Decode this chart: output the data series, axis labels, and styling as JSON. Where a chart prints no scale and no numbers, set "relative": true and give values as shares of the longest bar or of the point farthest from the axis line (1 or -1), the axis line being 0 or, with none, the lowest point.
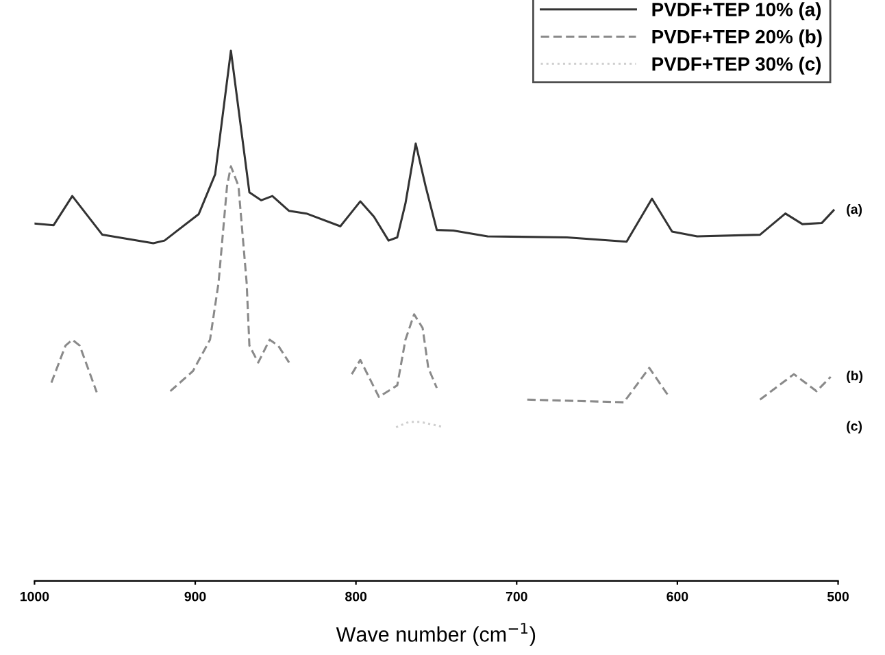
{
  "chart_data": {
    "type": "line",
    "relative": true,
    "xlabel": "Wave number (cm$^{−1}$)",
    "xlim": [
      1000,
      500
    ],
    "xticks": [
      1000,
      900,
      800,
      700,
      600,
      500
    ],
    "grid": false,
    "legend": "top right",
    "annotations": [
      "(a)",
      "(b)",
      "(c)"
    ],
    "series": [
      {
        "name": "PVDF+TEP 10% (a)",
        "color": "#333333",
        "line_style": "solid",
        "x": [
          1000,
          988.1,
          976.5,
          957.8,
          926.1,
          919.1,
          897.8,
          887.6,
          877.8,
          866.3,
          859.0,
          852.0,
          841.6,
          830.8,
          809.7,
          797.3,
          788.8,
          779.7,
          774.3,
          769.2,
          762.8,
          756.7,
          749.7,
          739.4,
          718.1,
          668.7,
          631.6,
          615.8,
          603.3,
          587.7,
          548.6,
          532.8,
          522.2,
          510.2,
          502.8
        ],
        "values": [
          0.674,
          0.671,
          0.726,
          0.653,
          0.637,
          0.642,
          0.692,
          0.767,
          1.0,
          0.733,
          0.718,
          0.726,
          0.698,
          0.693,
          0.669,
          0.716,
          0.687,
          0.642,
          0.648,
          0.712,
          0.825,
          0.745,
          0.662,
          0.661,
          0.65,
          0.648,
          0.64,
          0.721,
          0.659,
          0.65,
          0.653,
          0.693,
          0.673,
          0.675,
          0.699
        ]
      },
      {
        "name": "PVDF+TEP 20% (b)",
        "color": "#8a8a8a",
        "line_style": "dashed",
        "x": [
          989.5,
          980.7,
          976.5,
          971.9,
          961.3,
          940,
          915.5,
          901.4,
          890.8,
          885.5,
          880.2,
          877.8,
          873.1,
          868.0,
          866.3,
          860.8,
          853.7,
          848.4,
          841.6,
          820,
          802.6,
          797.3,
          785.7,
          774.3,
          769.2,
          763.8,
          758.5,
          755.0,
          749.7,
          720,
          693.4,
          633.3,
          617.5,
          605.1,
          580,
          548.6,
          527.5,
          513.4,
          504.6
        ],
        "values": [
          0.374,
          0.444,
          0.455,
          0.444,
          0.356,
          null,
          0.358,
          0.396,
          0.455,
          0.562,
          0.745,
          0.782,
          0.745,
          0.562,
          0.444,
          0.412,
          0.455,
          0.444,
          0.412,
          null,
          0.39,
          0.417,
          0.347,
          0.369,
          0.455,
          0.503,
          0.477,
          0.402,
          0.364,
          null,
          0.342,
          0.337,
          0.402,
          0.347,
          null,
          0.342,
          0.39,
          0.358,
          0.385
        ]
      },
      {
        "name": "PVDF+TEP 30% (c)",
        "color": "#cfcfcf",
        "line_style": "dotted",
        "x": [
          775,
          767,
          760,
          745
        ],
        "values": [
          0.29,
          0.3,
          0.3,
          0.29
        ]
      }
    ]
  }
}
